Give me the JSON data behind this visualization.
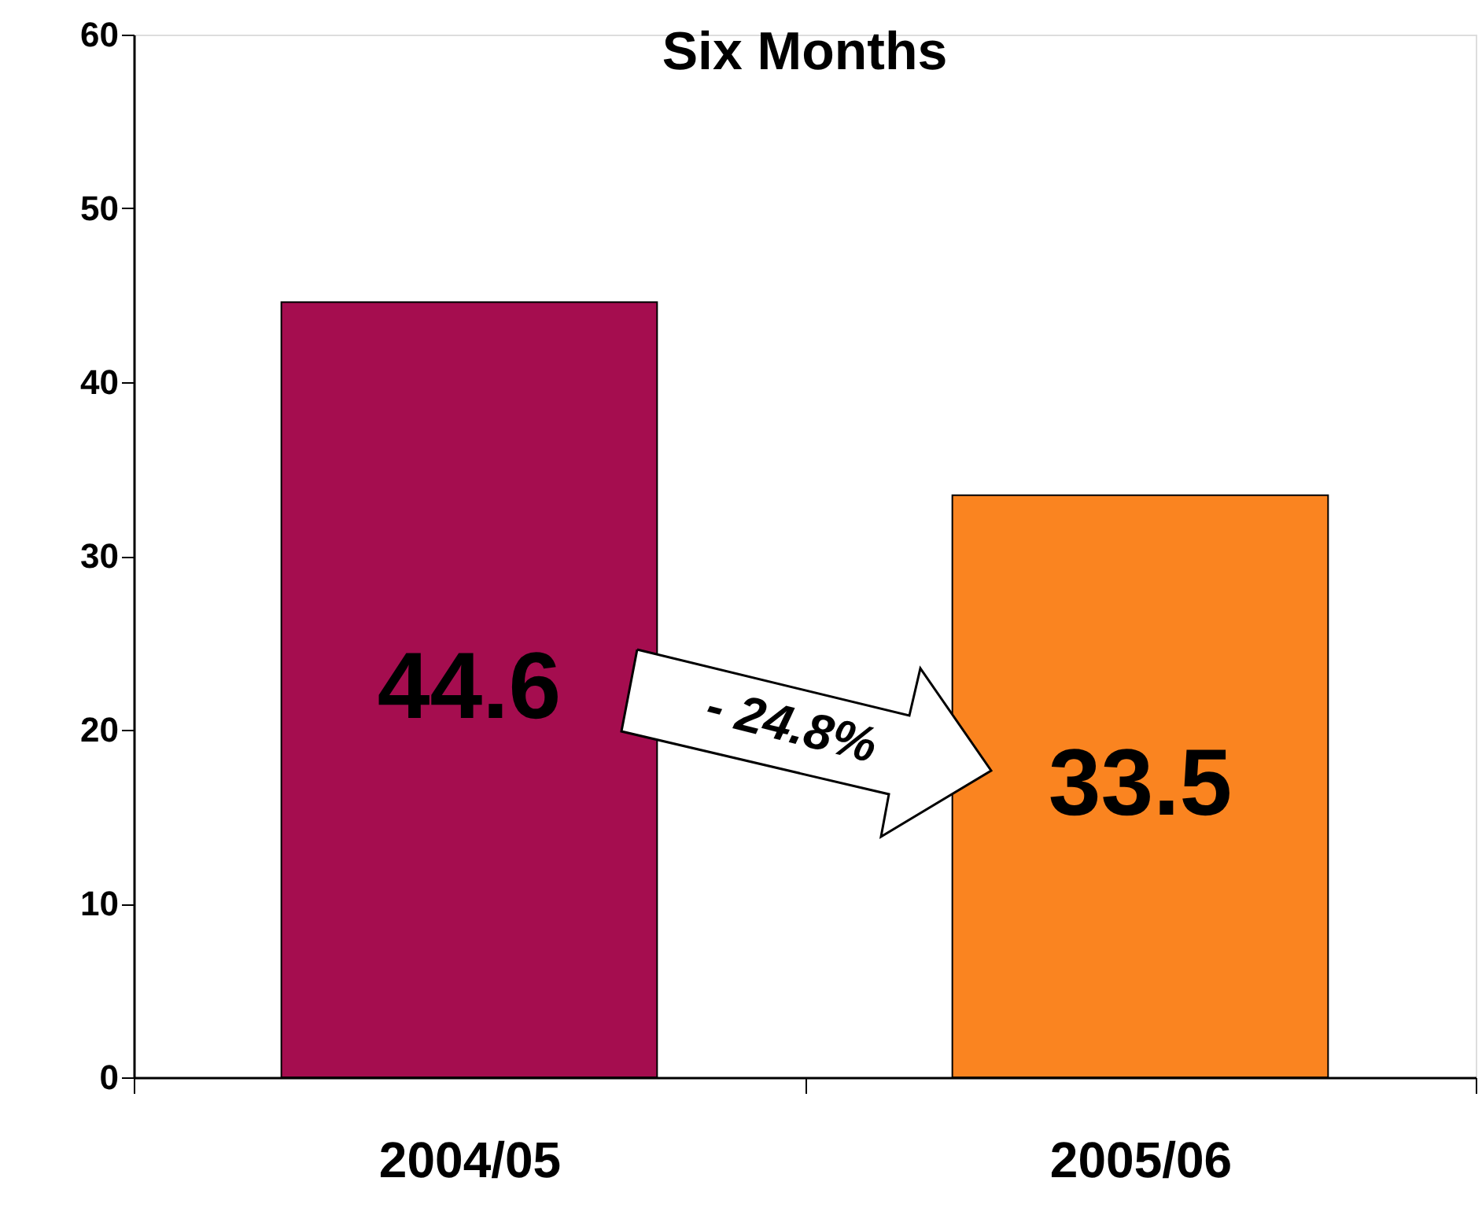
{
  "chart_data": {
    "type": "bar",
    "title": "Six Months",
    "categories": [
      "2004/05",
      "2005/06"
    ],
    "values": [
      44.6,
      33.5
    ],
    "colors": [
      "#a50d4f",
      "#fa8420"
    ],
    "ylim": [
      0,
      60
    ],
    "yticks": [
      0,
      10,
      20,
      30,
      40,
      50,
      60
    ],
    "grid": false,
    "data_labels": true,
    "annotations": [
      "- 24.8%"
    ]
  }
}
